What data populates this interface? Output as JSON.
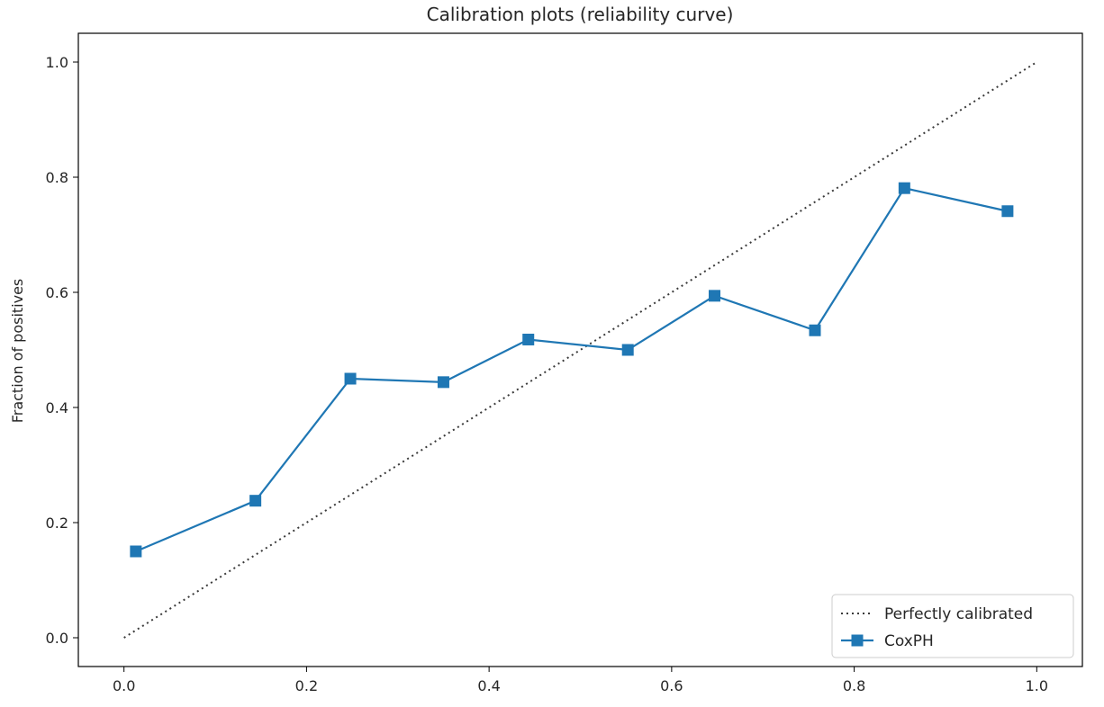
{
  "chart_data": {
    "type": "line",
    "title": "Calibration plots  (reliability curve)",
    "xlabel": "",
    "ylabel": "Fraction of positives",
    "xlim": [
      -0.05,
      1.05
    ],
    "ylim": [
      -0.05,
      1.05
    ],
    "xticks": [
      0.0,
      0.2,
      0.4,
      0.6,
      0.8,
      1.0
    ],
    "yticks": [
      0.0,
      0.2,
      0.4,
      0.6,
      0.8,
      1.0
    ],
    "xtick_labels": [
      "0.0",
      "0.2",
      "0.4",
      "0.6",
      "0.8",
      "1.0"
    ],
    "ytick_labels": [
      "0.0",
      "0.2",
      "0.4",
      "0.6",
      "0.8",
      "1.0"
    ],
    "grid": false,
    "legend_position": "lower-right",
    "series": [
      {
        "name": "Perfectly calibrated",
        "style": "dotted",
        "color": "#3a3a3a",
        "x": [
          0.0,
          1.0
        ],
        "y": [
          0.0,
          1.0
        ]
      },
      {
        "name": "CoxPH",
        "style": "solid",
        "marker": "square",
        "color": "#1f77b4",
        "x": [
          0.013,
          0.144,
          0.248,
          0.35,
          0.443,
          0.552,
          0.647,
          0.757,
          0.855,
          0.968
        ],
        "y": [
          0.15,
          0.238,
          0.45,
          0.444,
          0.518,
          0.5,
          0.594,
          0.534,
          0.781,
          0.741
        ]
      }
    ]
  }
}
